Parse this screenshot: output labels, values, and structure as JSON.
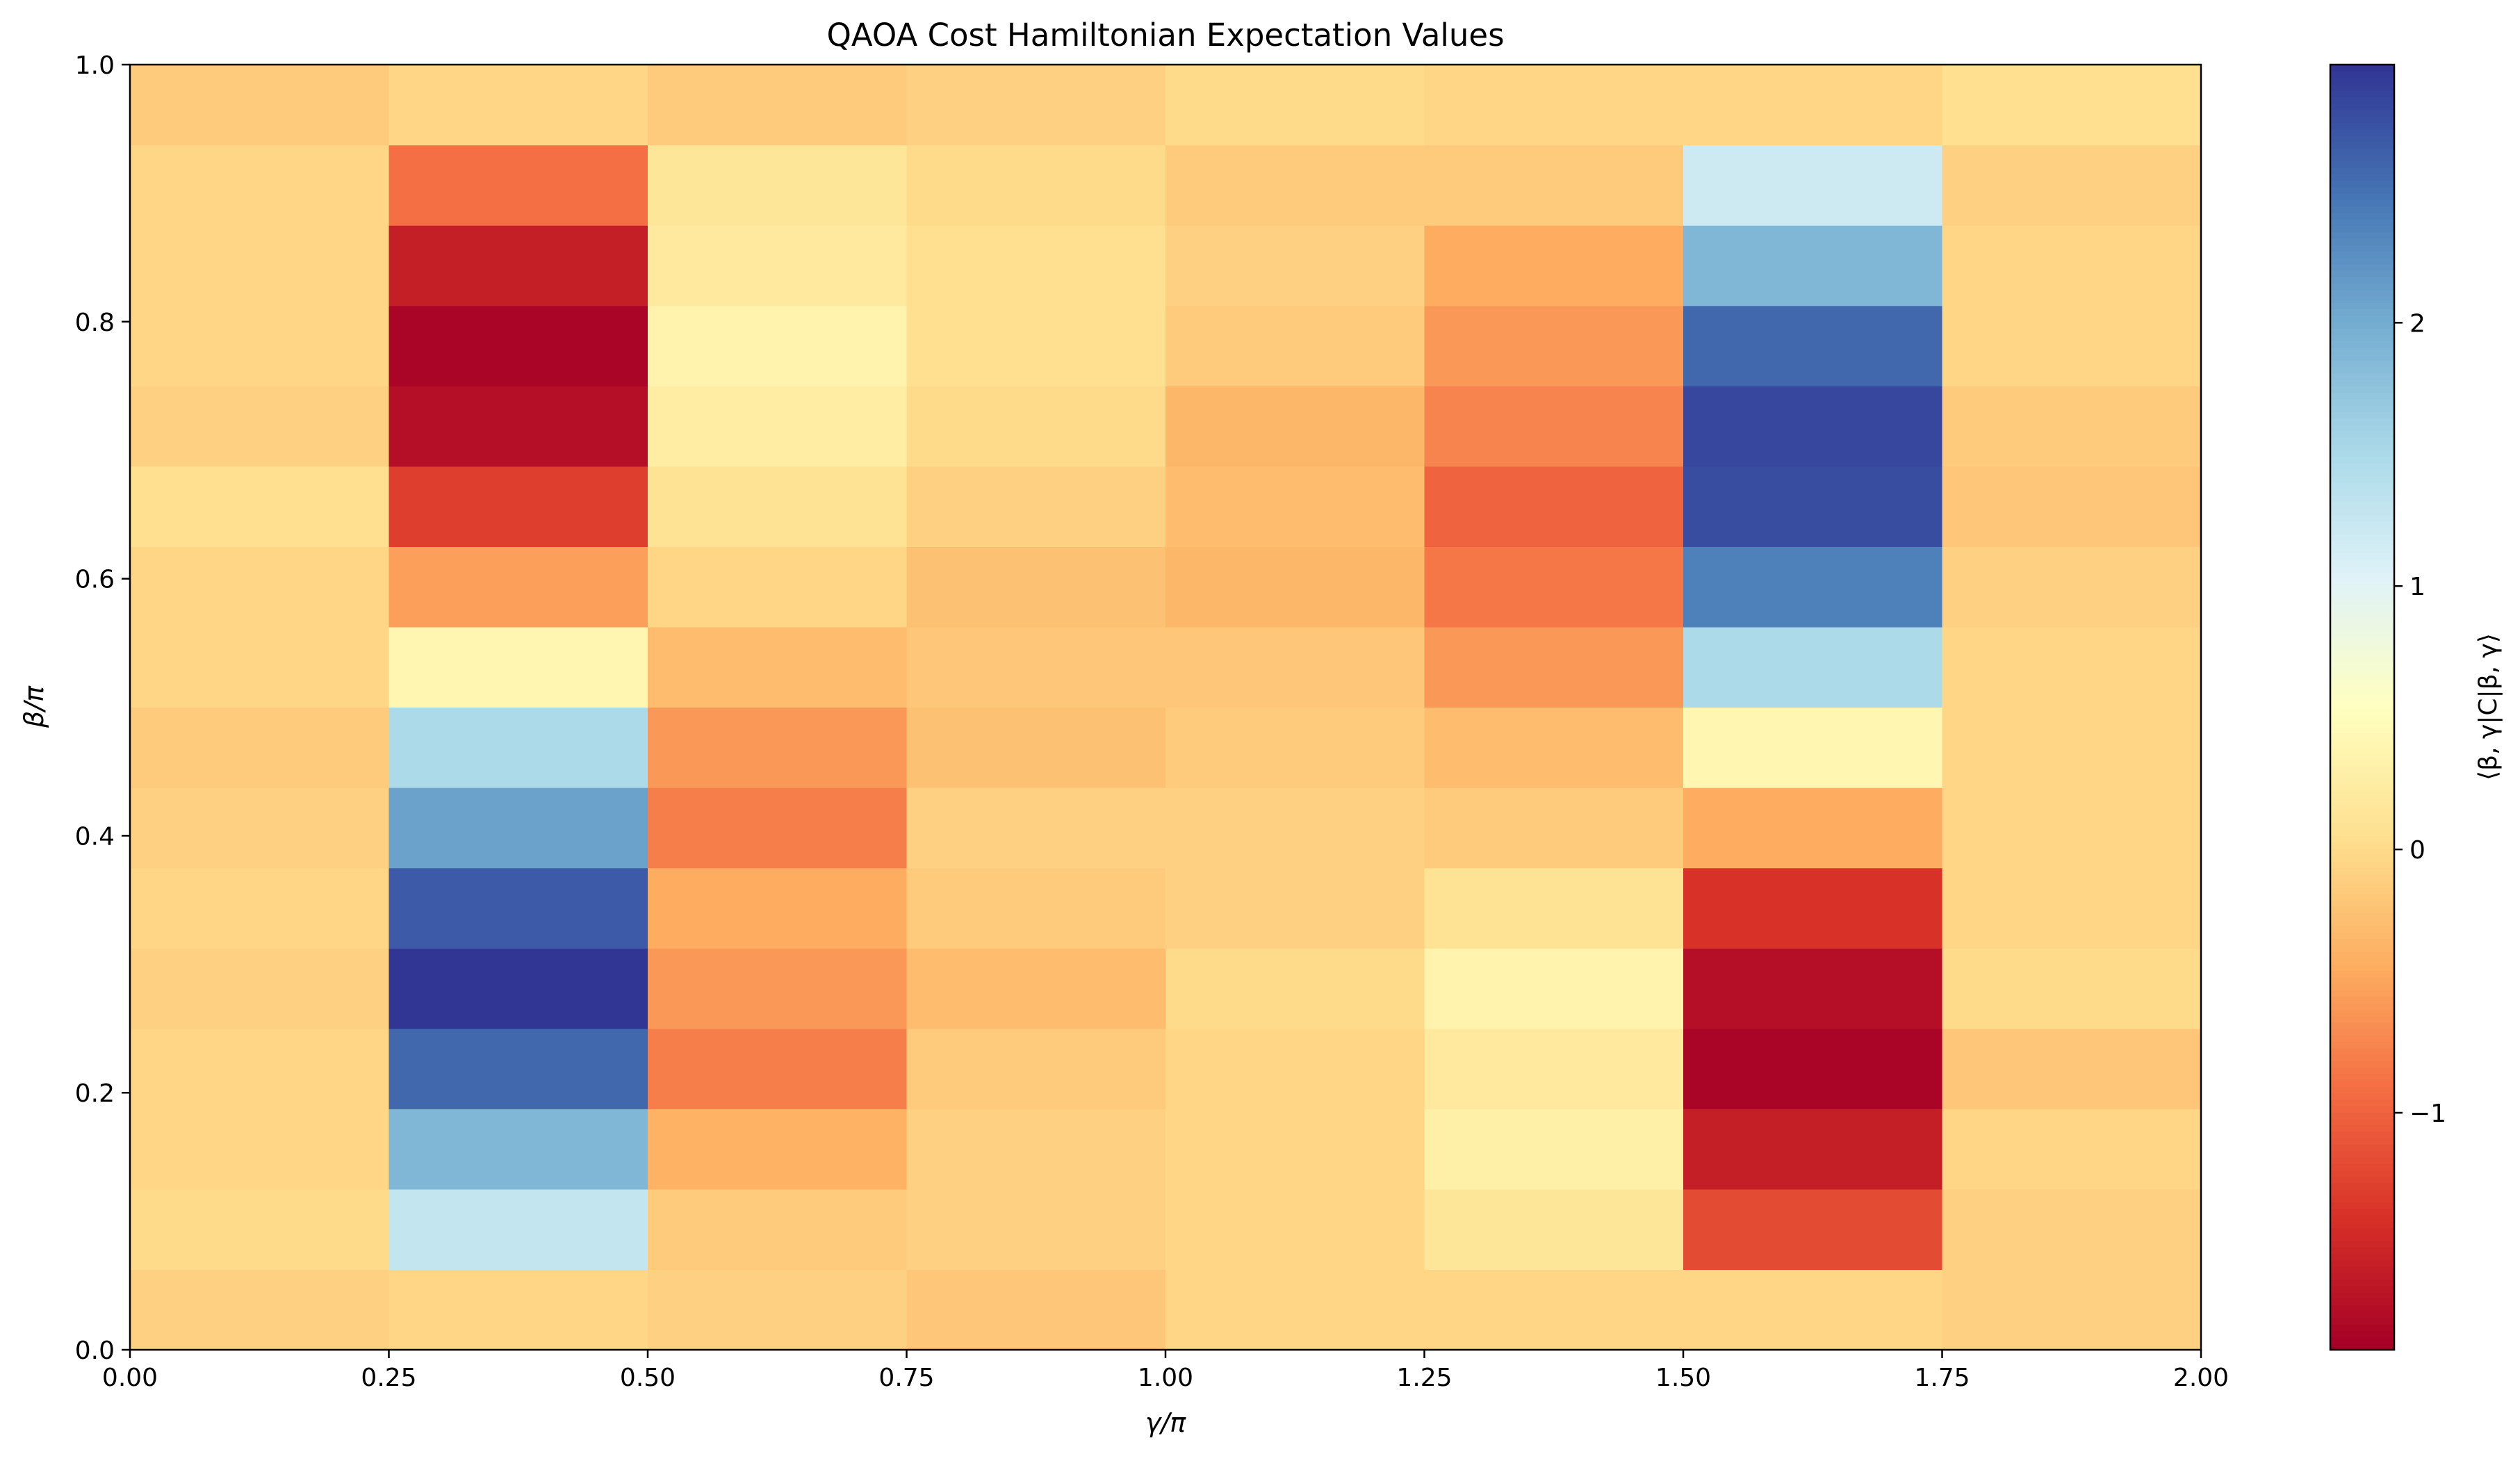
{
  "chart_data": {
    "type": "heatmap",
    "title": "QAOA Cost Hamiltonian Expectation Values",
    "xlabel": "γ/π",
    "ylabel": "β/π",
    "xlim": [
      0.0,
      2.0
    ],
    "ylim": [
      0.0,
      1.0
    ],
    "x_edges": [
      0.0,
      0.25,
      0.5,
      0.75,
      1.0,
      1.25,
      1.5,
      1.75,
      2.0
    ],
    "y_edges": [
      0.0,
      0.0625,
      0.125,
      0.1875,
      0.25,
      0.3125,
      0.375,
      0.4375,
      0.5,
      0.5625,
      0.625,
      0.6875,
      0.75,
      0.8125,
      0.875,
      0.9375,
      1.0
    ],
    "x_ticks": [
      "0.00",
      "0.25",
      "0.50",
      "0.75",
      "1.00",
      "1.25",
      "1.50",
      "1.75",
      "2.00"
    ],
    "y_ticks": [
      "0.0",
      "0.2",
      "0.4",
      "0.6",
      "0.8",
      "1.0"
    ],
    "colormap": "RdYlBu",
    "colorbar": {
      "label": "⟨β, γ|C|β, γ⟩",
      "vmin": -1.9,
      "vmax": 2.98,
      "ticks": [
        -1,
        0,
        1,
        2
      ],
      "tick_labels": [
        "−1",
        "0",
        "1",
        "2"
      ]
    },
    "values_rows_bottom_to_top": [
      [
        -0.1,
        -0.05,
        -0.1,
        -0.2,
        -0.05,
        -0.05,
        -0.05,
        -0.1
      ],
      [
        0.0,
        1.3,
        -0.15,
        -0.1,
        -0.05,
        0.15,
        -1.2,
        -0.1
      ],
      [
        -0.05,
        1.9,
        -0.4,
        -0.1,
        -0.05,
        0.3,
        -1.6,
        -0.05
      ],
      [
        -0.05,
        2.6,
        -0.8,
        -0.15,
        -0.05,
        0.2,
        -1.85,
        -0.2
      ],
      [
        -0.1,
        3.0,
        -0.6,
        -0.3,
        0.0,
        0.35,
        -1.75,
        0.0
      ],
      [
        -0.05,
        2.7,
        -0.45,
        -0.15,
        -0.1,
        0.1,
        -1.4,
        -0.05
      ],
      [
        -0.1,
        2.1,
        -0.8,
        -0.1,
        -0.1,
        -0.15,
        -0.45,
        -0.05
      ],
      [
        -0.15,
        1.5,
        -0.6,
        -0.25,
        -0.15,
        -0.3,
        0.4,
        -0.05
      ],
      [
        -0.05,
        0.4,
        -0.3,
        -0.2,
        -0.2,
        -0.6,
        1.5,
        -0.05
      ],
      [
        -0.05,
        -0.55,
        -0.05,
        -0.25,
        -0.35,
        -0.85,
        2.4,
        -0.1
      ],
      [
        0.05,
        -1.3,
        0.1,
        -0.1,
        -0.3,
        -1.0,
        2.8,
        -0.2
      ],
      [
        -0.1,
        -1.75,
        0.25,
        0.0,
        -0.35,
        -0.75,
        2.85,
        -0.15
      ],
      [
        -0.05,
        -1.85,
        0.35,
        0.05,
        -0.15,
        -0.6,
        2.6,
        -0.05
      ],
      [
        -0.05,
        -1.6,
        0.2,
        0.05,
        -0.1,
        -0.45,
        1.9,
        -0.05
      ],
      [
        -0.05,
        -0.9,
        0.15,
        0.0,
        -0.15,
        -0.15,
        1.2,
        -0.1
      ],
      [
        -0.15,
        -0.05,
        -0.15,
        -0.1,
        0.0,
        -0.05,
        -0.05,
        0.05
      ]
    ]
  }
}
